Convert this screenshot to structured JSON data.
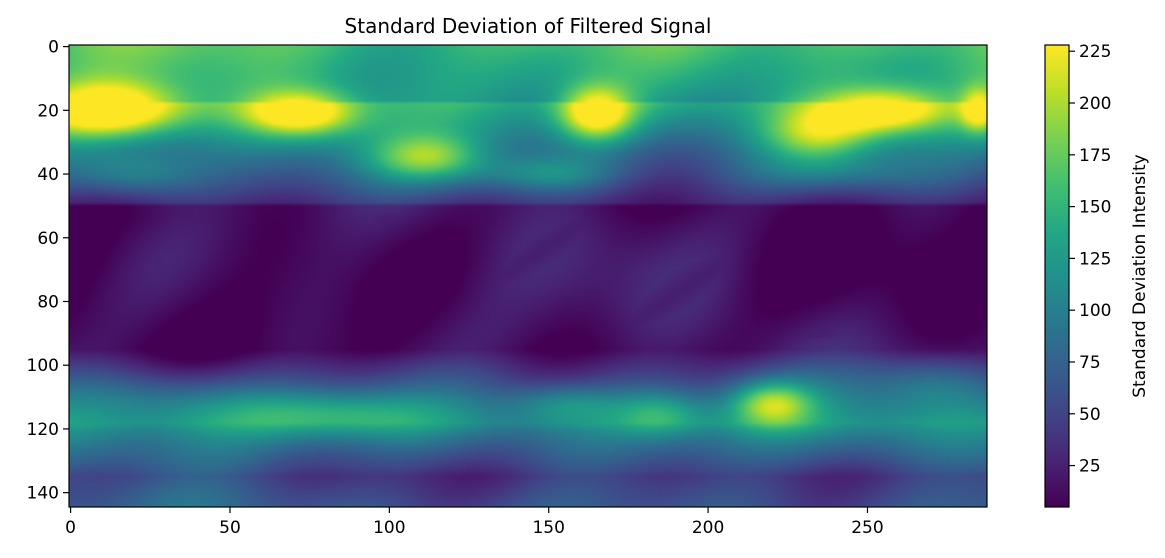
{
  "chart_data": {
    "type": "heatmap",
    "title": "Standard Deviation of Filtered Signal",
    "colormap": "viridis",
    "x_ticks": [
      0,
      50,
      100,
      150,
      200,
      250
    ],
    "y_ticks": [
      0,
      20,
      40,
      60,
      80,
      100,
      120,
      140
    ],
    "xlim": [
      -0.5,
      287.5
    ],
    "ylim": [
      144.5,
      -0.5
    ],
    "y_inverted": true,
    "grid": false,
    "colorbar": {
      "label": "Standard Deviation Intensity",
      "range": [
        5,
        228
      ],
      "ticks": [
        25,
        50,
        75,
        100,
        125,
        150,
        175,
        200,
        225
      ]
    },
    "blobs": [
      {
        "x": 12,
        "y": 20,
        "sx": 16,
        "sy": 6,
        "v": 150
      },
      {
        "x": 72,
        "y": 21,
        "sx": 12,
        "sy": 5,
        "v": 130
      },
      {
        "x": 165,
        "y": 21,
        "sx": 8,
        "sy": 6,
        "v": 140
      },
      {
        "x": 255,
        "y": 20,
        "sx": 14,
        "sy": 5,
        "v": 130
      },
      {
        "x": 235,
        "y": 28,
        "sx": 12,
        "sy": 6,
        "v": 90
      },
      {
        "x": 285,
        "y": 20,
        "sx": 4,
        "sy": 5,
        "v": 100
      },
      {
        "x": 112,
        "y": 35,
        "sx": 12,
        "sy": 5,
        "v": 90
      },
      {
        "x": 20,
        "y": 40,
        "sx": 14,
        "sy": 5,
        "v": 55
      },
      {
        "x": 150,
        "y": 40,
        "sx": 15,
        "sy": 4,
        "v": 55
      },
      {
        "x": 220,
        "y": 112,
        "sx": 9,
        "sy": 5,
        "v": 110
      },
      {
        "x": 80,
        "y": 115,
        "sx": 25,
        "sy": 5,
        "v": 60
      },
      {
        "x": 155,
        "y": 112,
        "sx": 12,
        "sy": 4,
        "v": 45
      },
      {
        "x": 185,
        "y": 115,
        "sx": 10,
        "sy": 5,
        "v": 60
      },
      {
        "x": 30,
        "y": 110,
        "sx": 20,
        "sy": 6,
        "v": 30
      },
      {
        "x": 270,
        "y": 105,
        "sx": 12,
        "sy": 6,
        "v": 30
      },
      {
        "x": 240,
        "y": 40,
        "sx": 20,
        "sy": 4,
        "v": 30
      }
    ]
  }
}
